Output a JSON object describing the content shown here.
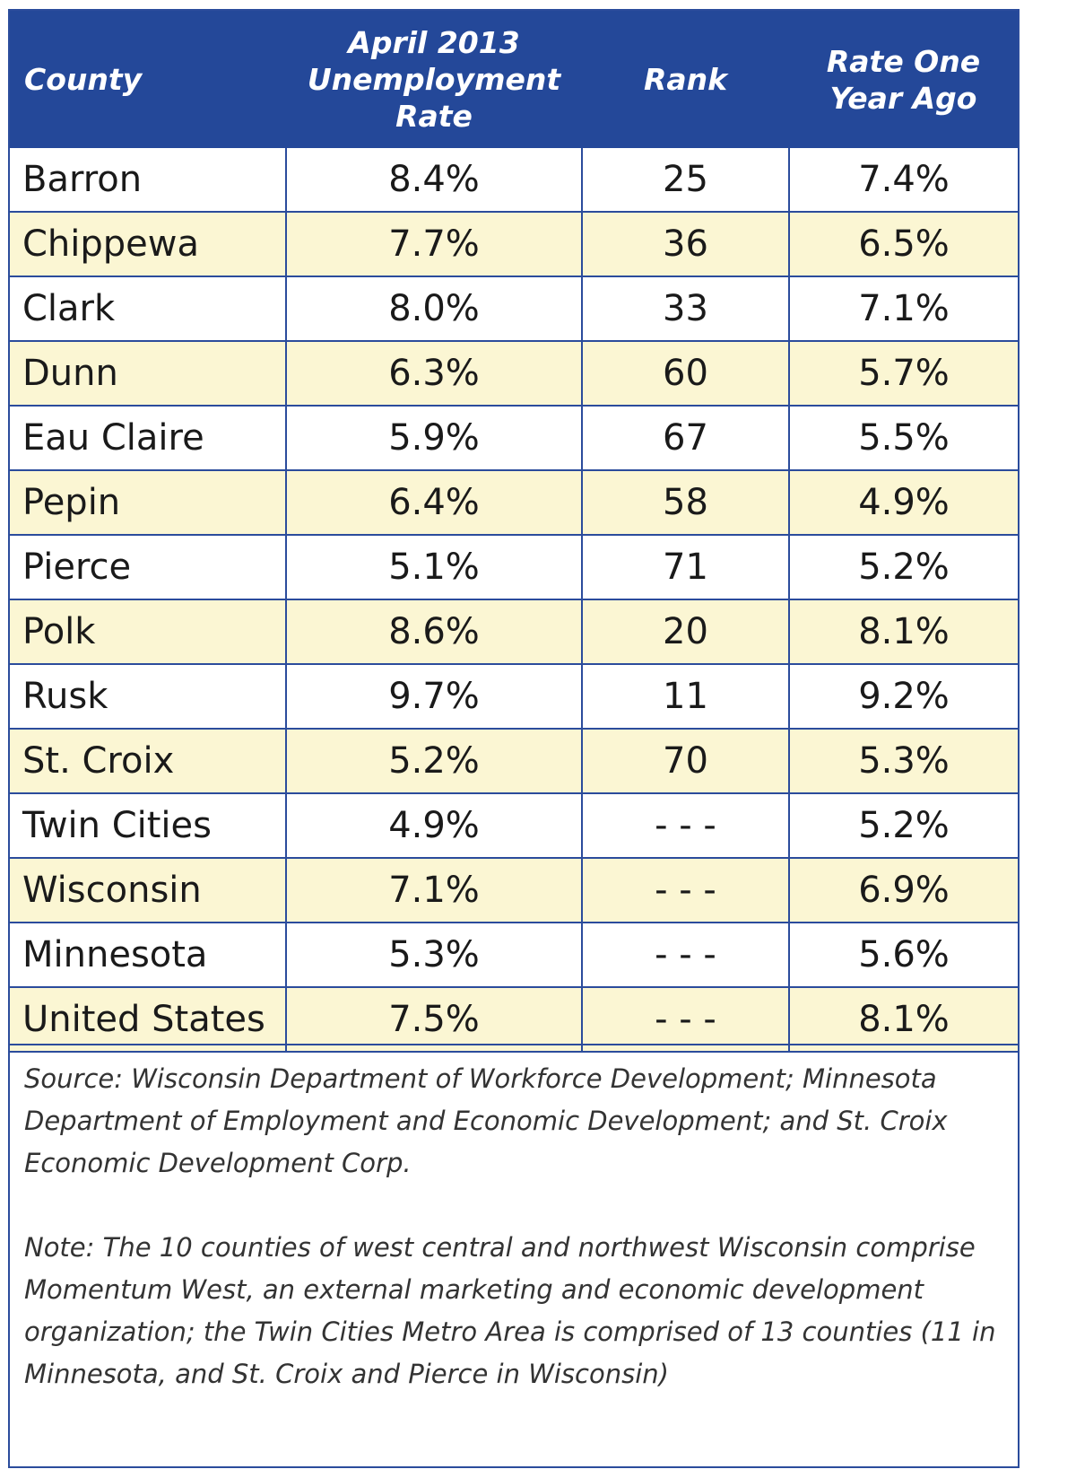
{
  "chart_data": {
    "type": "table",
    "columns": {
      "county": "County",
      "rate_lines": [
        "April 2013",
        "Unemployment",
        "Rate"
      ],
      "rank": "Rank",
      "prior_lines": [
        "Rate One",
        "Year Ago"
      ]
    },
    "rows": [
      {
        "county": "Barron",
        "rate": "8.4%",
        "rank": "25",
        "prior": "7.4%"
      },
      {
        "county": "Chippewa",
        "rate": "7.7%",
        "rank": "36",
        "prior": "6.5%"
      },
      {
        "county": "Clark",
        "rate": "8.0%",
        "rank": "33",
        "prior": "7.1%"
      },
      {
        "county": "Dunn",
        "rate": "6.3%",
        "rank": "60",
        "prior": "5.7%"
      },
      {
        "county": "Eau Claire",
        "rate": "5.9%",
        "rank": "67",
        "prior": "5.5%"
      },
      {
        "county": "Pepin",
        "rate": "6.4%",
        "rank": "58",
        "prior": "4.9%"
      },
      {
        "county": "Pierce",
        "rate": "5.1%",
        "rank": "71",
        "prior": "5.2%"
      },
      {
        "county": "Polk",
        "rate": "8.6%",
        "rank": "20",
        "prior": "8.1%"
      },
      {
        "county": "Rusk",
        "rate": "9.7%",
        "rank": "11",
        "prior": "9.2%"
      },
      {
        "county": "St. Croix",
        "rate": "5.2%",
        "rank": "70",
        "prior": "5.3%"
      },
      {
        "county": "Twin Cities",
        "rate": "4.9%",
        "rank": "- - -",
        "prior": "5.2%"
      },
      {
        "county": "Wisconsin",
        "rate": "7.1%",
        "rank": "- - -",
        "prior": "6.9%"
      },
      {
        "county": "Minnesota",
        "rate": "5.3%",
        "rank": "- - -",
        "prior": "5.6%"
      },
      {
        "county": "United States",
        "rate": "7.5%",
        "rank": "- - -",
        "prior": "8.1%"
      }
    ]
  },
  "footnotes": {
    "source": "Source: Wisconsin Department of Workforce Development; Minnesota Department of Employment and Economic Development; and St. Croix Economic Development Corp.",
    "note": "Note: The 10 counties of west central and northwest Wisconsin comprise Momentum West, an external marketing and economic development organization; the Twin Cities Metro Area is comprised of 13 counties (11 in Minnesota, and St. Croix and Pierce in Wisconsin)"
  },
  "colors": {
    "header_bg": "#244899",
    "border": "#2b4c9c",
    "alt_row_bg": "#fbf6d3"
  }
}
